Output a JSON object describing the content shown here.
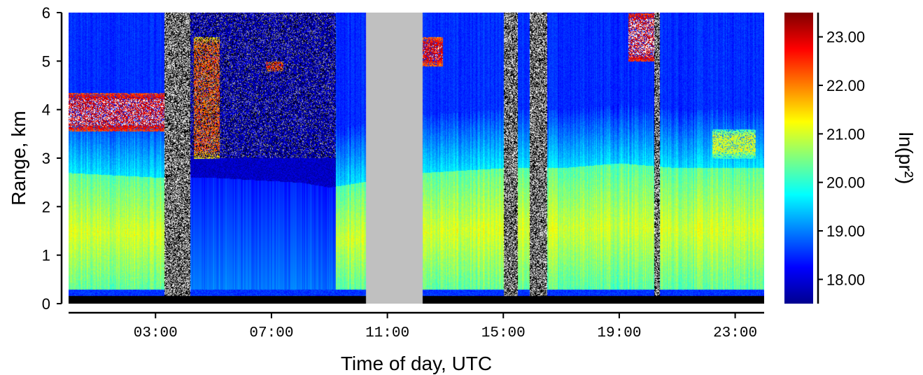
{
  "chart_data": {
    "type": "heatmap",
    "title": "",
    "xlabel": "Time of day, UTC",
    "ylabel": "Range, km",
    "colorbar_label": "ln(pr²)",
    "xlim_hours": [
      0.0,
      24.0
    ],
    "ylim_km": [
      0,
      6
    ],
    "x_tick_hours": [
      3,
      7,
      11,
      15,
      19,
      23
    ],
    "x_tick_labels": [
      "03:00",
      "07:00",
      "11:00",
      "15:00",
      "19:00",
      "23:00"
    ],
    "y_ticks": [
      0,
      1,
      2,
      3,
      4,
      5,
      6
    ],
    "y_tick_labels": [
      "0",
      "1",
      "2",
      "3",
      "4",
      "5",
      "6"
    ],
    "colorbar_range": [
      17.5,
      23.5
    ],
    "colorbar_ticks": [
      18,
      19,
      20,
      21,
      22,
      23
    ],
    "colorbar_tick_labels": [
      "18.00",
      "19.00",
      "20.00",
      "21.00",
      "22.00",
      "23.00"
    ],
    "colormap": "jet",
    "no_data_color": "#c0c0c0",
    "noise_colors": [
      "#000000",
      "#ffffff",
      "#a8a8a8"
    ],
    "no_data_intervals_hours": [
      [
        10.25,
        12.2
      ]
    ],
    "noise_intervals_hours": [
      [
        3.3,
        4.2
      ],
      [
        15.0,
        15.5
      ],
      [
        15.9,
        16.5
      ],
      [
        20.2,
        20.4
      ]
    ],
    "boundary_layer_top_km": [
      [
        0.0,
        2.7
      ],
      [
        3.2,
        2.6
      ],
      [
        5.0,
        2.6
      ],
      [
        8.0,
        2.5
      ],
      [
        9.0,
        2.4
      ],
      [
        12.2,
        2.7
      ],
      [
        15.0,
        2.8
      ],
      [
        17.0,
        2.8
      ],
      [
        19.0,
        2.9
      ],
      [
        21.0,
        2.8
      ],
      [
        24.0,
        2.8
      ]
    ],
    "cloud_layers": [
      {
        "t0": 0.0,
        "t1": 3.3,
        "z0_km": 3.55,
        "z1_km": 4.35,
        "value": 23.2
      },
      {
        "t0": 4.3,
        "t1": 5.2,
        "z0_km": 3.0,
        "z1_km": 5.5,
        "value": 22.2
      },
      {
        "t0": 6.8,
        "t1": 7.4,
        "z0_km": 4.8,
        "z1_km": 5.0,
        "value": 23.0
      },
      {
        "t0": 12.2,
        "t1": 12.9,
        "z0_km": 4.9,
        "z1_km": 5.5,
        "value": 23.0
      },
      {
        "t0": 19.3,
        "t1": 20.4,
        "z0_km": 5.0,
        "z1_km": 6.0,
        "value": 23.3
      },
      {
        "t0": 22.2,
        "t1": 23.7,
        "z0_km": 3.0,
        "z1_km": 3.6,
        "value": 21.0
      }
    ]
  }
}
